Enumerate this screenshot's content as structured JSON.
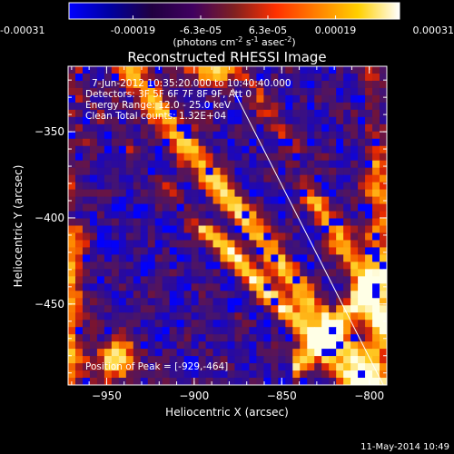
{
  "colorbar": {
    "tick_labels": [
      "-0.00031",
      "-0.00019",
      "-6.3e-05",
      "6.3e-05",
      "0.00019",
      "0.00031"
    ],
    "tick_values": [
      -0.00031,
      -0.00019,
      -6.3e-05,
      6.3e-05,
      0.00019,
      0.00031
    ],
    "range": [
      -0.00031,
      0.00031
    ],
    "units_text": "(photons cm",
    "units_sup1": "-2",
    "units_mid": " s",
    "units_sup2": "-1",
    "units_end": " asec",
    "units_sup3": "-2",
    "units_close": ")",
    "colors": [
      "#0000ff",
      "#0000a0",
      "#200040",
      "#400060",
      "#802020",
      "#ff3000",
      "#ff8000",
      "#ffd000",
      "#ffffff"
    ]
  },
  "chart_data": {
    "type": "heatmap",
    "title": "Reconstructed RHESSI Image",
    "xlabel": "Heliocentric X (arcsec)",
    "ylabel": "Heliocentric Y (arcsec)",
    "xlim": [
      -972,
      -790
    ],
    "ylim": [
      -497,
      -312
    ],
    "x_ticks": [
      -950,
      -900,
      -850,
      -800
    ],
    "y_ticks": [
      -450,
      -400,
      -350
    ],
    "x_tick_labels": [
      "−950",
      "−900",
      "−850",
      "−800"
    ],
    "y_tick_labels": [
      "−450",
      "−400",
      "−350"
    ],
    "limb_line": {
      "x": [
        -878,
        -792
      ],
      "y": [
        -325,
        -497
      ]
    },
    "grid": false,
    "annotations": {
      "line1": "7-Jun-2012 10:35:20.000 to 10:40:40.000",
      "line2": "Detectors: 3F 5F 6F 7F 8F 9F, Att 0",
      "line3": "Energy Range: 12.0 - 25.0 keV",
      "line4": "Clean     Total counts: 1.32E+04",
      "peak": "Position of Peak = [-929,-464]"
    },
    "peak_position": [
      -929,
      -464
    ]
  },
  "footer": {
    "timestamp": "11-May-2014 10:49"
  }
}
